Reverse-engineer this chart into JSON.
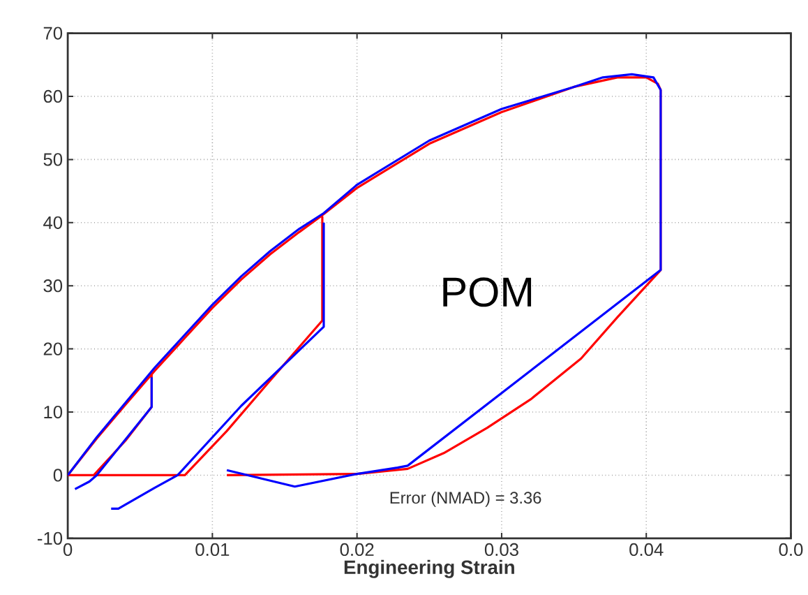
{
  "chart_data": {
    "type": "line",
    "xlabel": "Engineering Strain",
    "xlim": [
      0,
      0.05
    ],
    "ylim": [
      -10,
      70
    ],
    "xticks": [
      0,
      0.01,
      0.02,
      0.03,
      0.04,
      {
        "value": 0.05,
        "label": "0.0"
      }
    ],
    "yticks": [
      -10,
      0,
      10,
      20,
      30,
      40,
      50,
      60,
      70
    ],
    "grid": true,
    "marker": "none",
    "line_style": "solid",
    "annotations": [
      "POM",
      "Error (NMAD) = 3.36"
    ],
    "series": [
      {
        "color": "#ff0000",
        "x": [
          0,
          0.002,
          0.004,
          0.006,
          0.008,
          0.01,
          0.012,
          0.014,
          0.016,
          0.0175,
          0.02,
          0.025,
          0.03,
          0.035,
          0.038,
          0.04,
          0.0408,
          0.041,
          0.041,
          0.038,
          0.0355,
          0.032,
          0.029,
          0.026,
          0.0235,
          0.02,
          0.011,
          null,
          0,
          0.0081,
          0.0081,
          0.011,
          0.014,
          0.0176,
          0.0176,
          null,
          0.0058,
          0.0058,
          0.004,
          0.0018
        ],
        "values": [
          0,
          5.8,
          11.2,
          16.5,
          21.5,
          26.5,
          31,
          35,
          38.5,
          41,
          45.5,
          52.5,
          57.5,
          61.5,
          63,
          63,
          62,
          61,
          32.5,
          25,
          18.5,
          12,
          7.5,
          3.5,
          1,
          0.2,
          0,
          null,
          0,
          0,
          0,
          7,
          15,
          24.5,
          41,
          null,
          16,
          10.8,
          5.5,
          0
        ]
      },
      {
        "color": "#0000ff",
        "x": [
          0,
          0.002,
          0.004,
          0.006,
          0.008,
          0.01,
          0.012,
          0.014,
          0.016,
          0.0177,
          0.02,
          0.025,
          0.03,
          0.035,
          0.037,
          0.039,
          0.0405,
          0.041,
          0.041,
          0.041,
          0.0235,
          0.0228,
          0.02,
          0.0157,
          0.011,
          null,
          0.0177,
          0.0177,
          0.012,
          0.0076,
          0.006,
          0.0035,
          0.003,
          null,
          0.0058,
          0.0058,
          0.002,
          0.0015,
          0.0005
        ],
        "values": [
          0,
          6,
          11.5,
          17,
          22,
          27,
          31.5,
          35.5,
          39,
          41.5,
          46,
          53,
          58,
          61.5,
          63,
          63.5,
          63,
          61,
          32.5,
          32.5,
          1.5,
          1.2,
          0.2,
          -1.8,
          0.8,
          null,
          40,
          23.5,
          11,
          0,
          -2,
          -5.3,
          -5.3,
          null,
          15.5,
          10.8,
          0,
          -1,
          -2.2
        ]
      }
    ]
  }
}
